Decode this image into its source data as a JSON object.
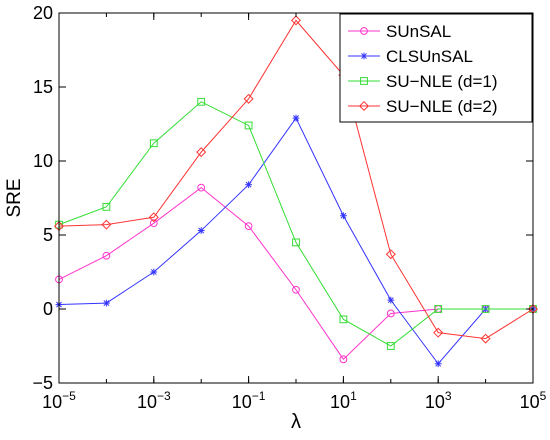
{
  "chart_data": {
    "type": "line",
    "title": "",
    "xlabel": "λ",
    "ylabel": "SRE",
    "x_scale": "log",
    "xlim": [
      1e-05,
      100000
    ],
    "ylim": [
      -5,
      20
    ],
    "grid": false,
    "legend_position": "top-right",
    "x": [
      1e-05,
      0.0001,
      0.001,
      0.01,
      0.1,
      1,
      10,
      100,
      1000,
      10000,
      100000
    ],
    "x_ticks": [
      {
        "value": 1e-05,
        "base": "10",
        "exp": "−5"
      },
      {
        "value": 0.001,
        "base": "10",
        "exp": "−3"
      },
      {
        "value": 0.1,
        "base": "10",
        "exp": "−1"
      },
      {
        "value": 10,
        "base": "10",
        "exp": "1"
      },
      {
        "value": 1000,
        "base": "10",
        "exp": "3"
      },
      {
        "value": 100000,
        "base": "10",
        "exp": "5"
      }
    ],
    "y_ticks": [
      -5,
      0,
      5,
      10,
      15,
      20
    ],
    "y_tick_labels": [
      "−5",
      "0",
      "5",
      "10",
      "15",
      "20"
    ],
    "series": [
      {
        "name": "SUnSAL",
        "color": "#ff33cc",
        "marker": "circle",
        "values": [
          2.0,
          3.6,
          5.8,
          8.2,
          5.6,
          1.3,
          -3.4,
          -0.3,
          0.0,
          0.0,
          0.0
        ]
      },
      {
        "name": "CLSUnSAL",
        "color": "#3333ff",
        "marker": "asterisk",
        "values": [
          0.3,
          0.4,
          2.5,
          5.3,
          8.4,
          12.9,
          6.3,
          0.6,
          -3.7,
          0.0,
          0.0
        ]
      },
      {
        "name": "SU−NLE (d=1)",
        "color": "#33dd33",
        "marker": "square",
        "values": [
          5.7,
          6.9,
          11.2,
          14.0,
          12.4,
          4.5,
          -0.7,
          -2.5,
          0.0,
          0.0,
          0.0
        ]
      },
      {
        "name": "SU−NLE (d=2)",
        "color": "#ff3333",
        "marker": "diamond",
        "values": [
          5.6,
          5.7,
          6.2,
          10.6,
          14.2,
          19.5,
          15.8,
          3.7,
          -1.6,
          -2.0,
          0.0
        ]
      }
    ]
  }
}
